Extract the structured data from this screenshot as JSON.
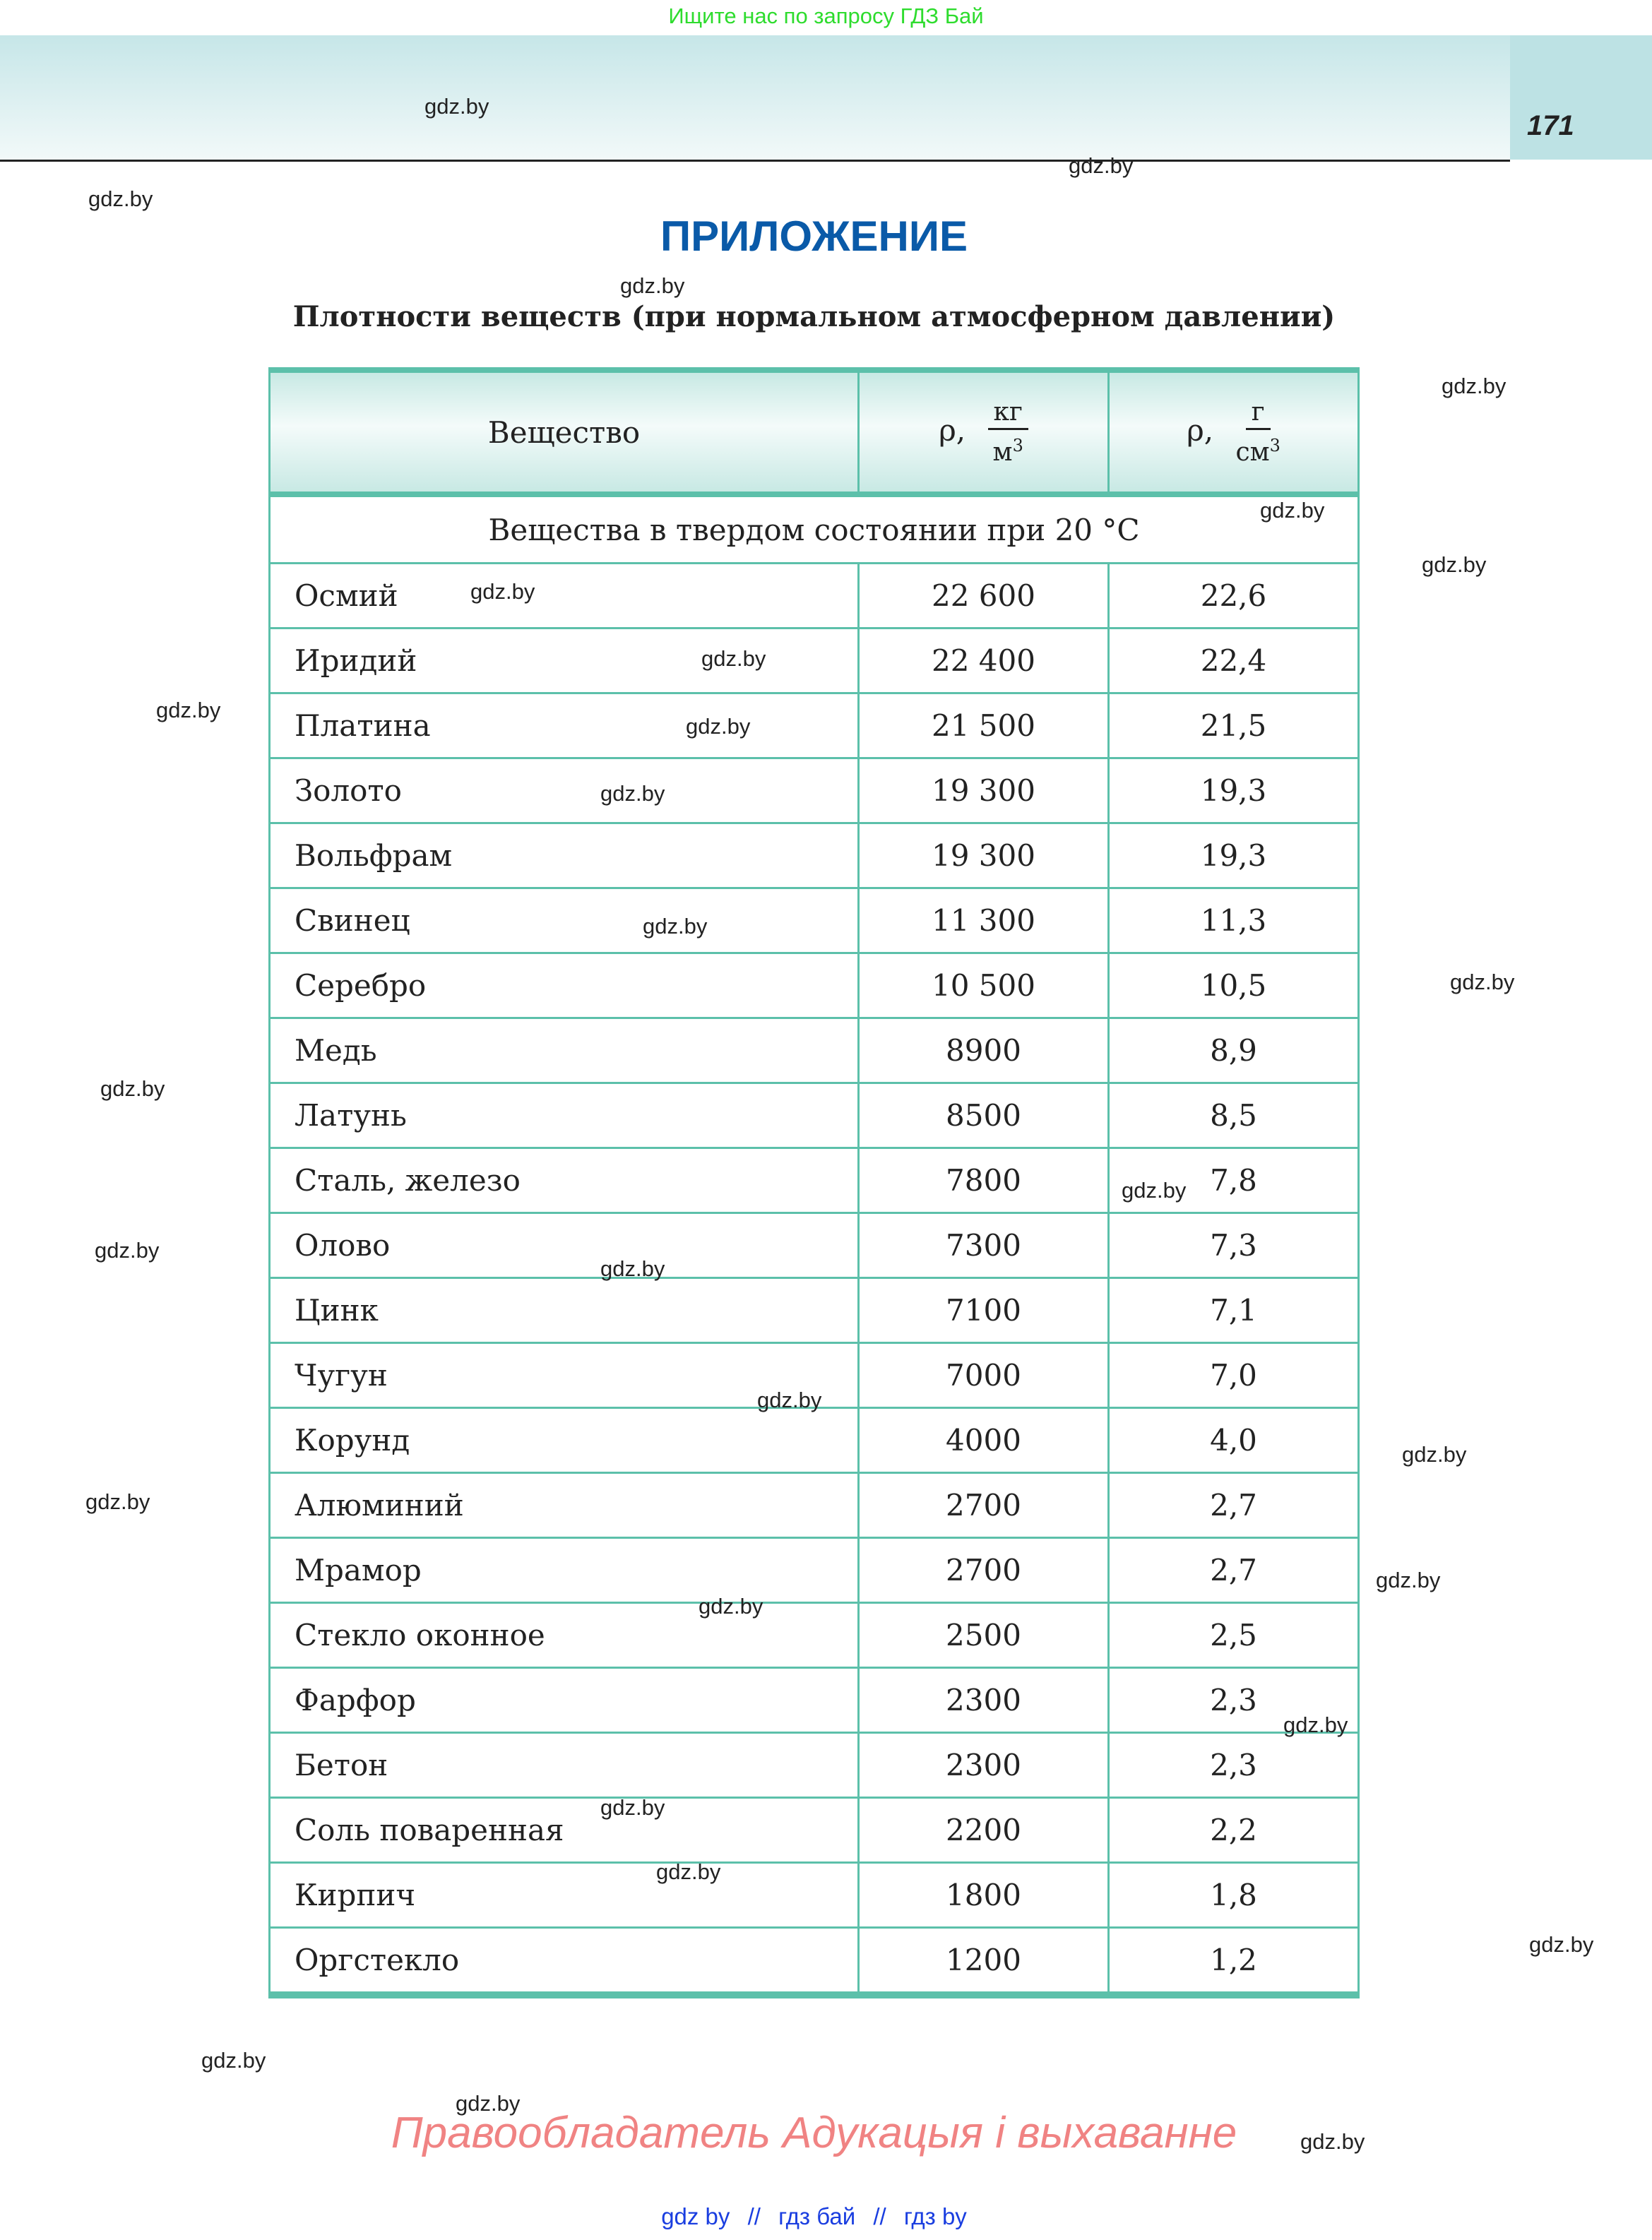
{
  "top_banner": "Ищите нас по запросу ГДЗ Бай",
  "page_number": "171",
  "title": "ПРИЛОЖЕНИЕ",
  "subtitle": "Плотности веществ (при нормальном атмосферном давлении)",
  "colors": {
    "accent": "#5cc0aa",
    "title": "#0a5aa8",
    "banner": "#2edc2e",
    "footer_red": "#f08383",
    "footer_links": "#1a3ee0"
  },
  "table": {
    "headers": {
      "substance": "Вещество",
      "rho": "ρ,",
      "unit1_num": "кг",
      "unit1_den": "м",
      "unit2_num": "г",
      "unit2_den": "см",
      "power": "3"
    },
    "section": "Вещества в твердом состоянии при 20 °C",
    "rows": [
      [
        "Осмий",
        "22 600",
        "22,6"
      ],
      [
        "Иридий",
        "22 400",
        "22,4"
      ],
      [
        "Платина",
        "21 500",
        "21,5"
      ],
      [
        "Золото",
        "19 300",
        "19,3"
      ],
      [
        "Вольфрам",
        "19 300",
        "19,3"
      ],
      [
        "Свинец",
        "11 300",
        "11,3"
      ],
      [
        "Серебро",
        "10 500",
        "10,5"
      ],
      [
        "Медь",
        "8900",
        "8,9"
      ],
      [
        "Латунь",
        "8500",
        "8,5"
      ],
      [
        "Сталь, железо",
        "7800",
        "7,8"
      ],
      [
        "Олово",
        "7300",
        "7,3"
      ],
      [
        "Цинк",
        "7100",
        "7,1"
      ],
      [
        "Чугун",
        "7000",
        "7,0"
      ],
      [
        "Корунд",
        "4000",
        "4,0"
      ],
      [
        "Алюминий",
        "2700",
        "2,7"
      ],
      [
        "Мрамор",
        "2700",
        "2,7"
      ],
      [
        "Стекло оконное",
        "2500",
        "2,5"
      ],
      [
        "Фарфор",
        "2300",
        "2,3"
      ],
      [
        "Бетон",
        "2300",
        "2,3"
      ],
      [
        "Соль поваренная",
        "2200",
        "2,2"
      ],
      [
        "Кирпич",
        "1800",
        "1,8"
      ],
      [
        "Оргстекло",
        "1200",
        "1,2"
      ]
    ]
  },
  "watermark": "gdz.by",
  "footer": {
    "copyright": "Правообладатель Адукацыя і выхаванне",
    "links": [
      "gdz by",
      "//",
      "гдз бай",
      "//",
      "гдз by"
    ]
  }
}
